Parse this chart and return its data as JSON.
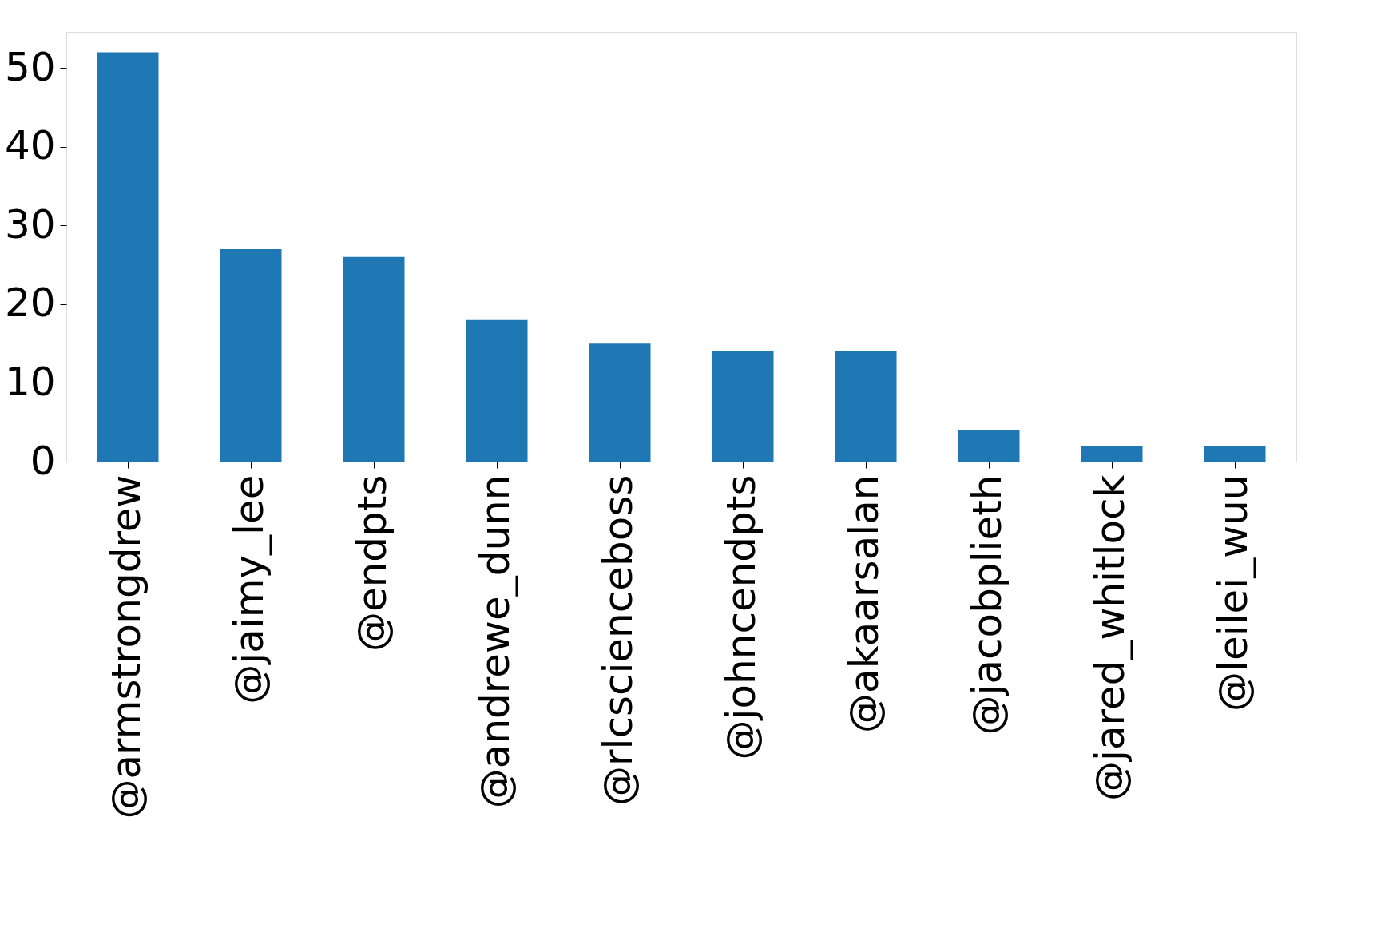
{
  "chart_data": {
    "type": "bar",
    "categories": [
      "@armstrongdrew",
      "@jaimy_lee",
      "@endpts",
      "@andrewe_dunn",
      "@rlcscienceboss",
      "@johncendpts",
      "@akaarsalan",
      "@jacobplieth",
      "@jared_whitlock",
      "@leilei_wuu"
    ],
    "values": [
      52,
      27,
      26,
      18,
      15,
      14,
      14,
      4,
      2,
      2
    ],
    "color": "#1f77b4",
    "ylim": [
      0,
      54.6
    ],
    "yticks": [
      0,
      10,
      20,
      30,
      40,
      50
    ],
    "grid": false
  }
}
